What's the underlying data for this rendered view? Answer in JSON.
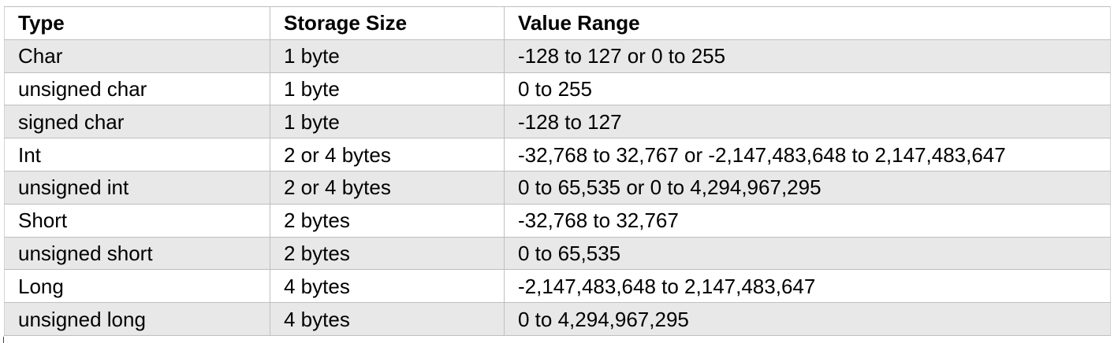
{
  "table": {
    "headers": [
      "Type",
      "Storage Size",
      "Value Range"
    ],
    "rows": [
      [
        "Char",
        "1 byte",
        "-128 to 127 or 0 to 255"
      ],
      [
        "unsigned char",
        "1 byte",
        "0 to 255"
      ],
      [
        "signed char",
        "1 byte",
        "-128 to 127"
      ],
      [
        "Int",
        "2 or 4 bytes",
        "-32,768 to 32,767 or -2,147,483,648 to 2,147,483,647"
      ],
      [
        "unsigned int",
        "2 or 4 bytes",
        "0 to 65,535 or 0 to 4,294,967,295"
      ],
      [
        "Short",
        "2 bytes",
        "-32,768 to 32,767"
      ],
      [
        "unsigned short",
        "2 bytes",
        "0 to 65,535"
      ],
      [
        "Long",
        "4 bytes",
        "-2,147,483,648 to 2,147,483,647"
      ],
      [
        "unsigned long",
        "4 bytes",
        "0 to 4,294,967,295"
      ]
    ]
  }
}
